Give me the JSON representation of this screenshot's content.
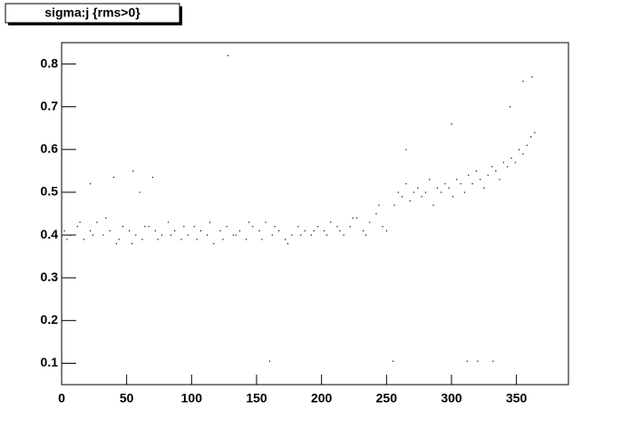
{
  "chart_data": {
    "type": "scatter",
    "title": "sigma:j {rms>0}",
    "x": [
      2,
      7,
      12,
      17,
      22,
      27,
      32,
      37,
      42,
      47,
      52,
      57,
      62,
      67,
      72,
      77,
      82,
      87,
      92,
      97,
      102,
      107,
      112,
      117,
      122,
      127,
      132,
      137,
      142,
      147,
      152,
      157,
      162,
      167,
      172,
      177,
      182,
      187,
      192,
      197,
      202,
      207,
      212,
      217,
      222,
      227,
      232,
      237,
      242,
      247,
      4,
      14,
      24,
      34,
      44,
      54,
      64,
      74,
      84,
      94,
      104,
      114,
      124,
      134,
      144,
      154,
      164,
      174,
      184,
      194,
      204,
      214,
      224,
      234,
      244,
      250,
      256,
      259,
      262,
      265,
      268,
      271,
      274,
      277,
      280,
      283,
      286,
      289,
      292,
      295,
      298,
      301,
      304,
      307,
      310,
      313,
      316,
      319,
      322,
      325,
      328,
      331,
      334,
      337,
      340,
      343,
      346,
      349,
      352,
      355,
      358,
      361,
      364,
      128,
      160,
      255,
      312,
      320,
      332,
      355,
      362,
      40,
      55,
      60,
      70,
      265,
      300,
      22,
      345
    ],
    "y": [
      0.41,
      0.4,
      0.42,
      0.39,
      0.41,
      0.43,
      0.4,
      0.41,
      0.38,
      0.42,
      0.41,
      0.4,
      0.39,
      0.42,
      0.41,
      0.4,
      0.43,
      0.41,
      0.39,
      0.4,
      0.42,
      0.41,
      0.4,
      0.38,
      0.41,
      0.42,
      0.4,
      0.41,
      0.39,
      0.42,
      0.41,
      0.43,
      0.4,
      0.41,
      0.39,
      0.4,
      0.42,
      0.41,
      0.4,
      0.42,
      0.41,
      0.43,
      0.42,
      0.4,
      0.42,
      0.44,
      0.41,
      0.43,
      0.45,
      0.42,
      0.39,
      0.43,
      0.4,
      0.44,
      0.39,
      0.38,
      0.42,
      0.39,
      0.4,
      0.42,
      0.39,
      0.43,
      0.39,
      0.4,
      0.43,
      0.39,
      0.42,
      0.38,
      0.4,
      0.41,
      0.4,
      0.41,
      0.44,
      0.4,
      0.47,
      0.41,
      0.47,
      0.5,
      0.49,
      0.52,
      0.48,
      0.5,
      0.51,
      0.49,
      0.5,
      0.53,
      0.47,
      0.51,
      0.5,
      0.52,
      0.51,
      0.49,
      0.53,
      0.52,
      0.5,
      0.54,
      0.52,
      0.55,
      0.53,
      0.51,
      0.54,
      0.56,
      0.55,
      0.53,
      0.57,
      0.56,
      0.58,
      0.57,
      0.6,
      0.59,
      0.61,
      0.63,
      0.64,
      0.82,
      0.105,
      0.105,
      0.105,
      0.105,
      0.105,
      0.76,
      0.77,
      0.535,
      0.55,
      0.5,
      0.535,
      0.6,
      0.66,
      0.52,
      0.7
    ],
    "color": "#000000",
    "xlim": [
      0,
      390
    ],
    "xticks": [
      0,
      50,
      100,
      150,
      200,
      250,
      300,
      350
    ],
    "ylim": [
      0.05,
      0.85
    ],
    "yticks": [
      0.1,
      0.2,
      0.3,
      0.4,
      0.5,
      0.6,
      0.7,
      0.8
    ]
  }
}
